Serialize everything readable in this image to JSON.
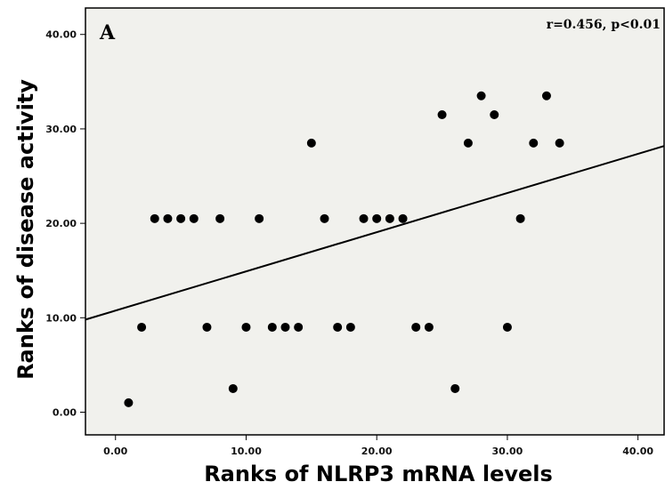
{
  "chart_data": {
    "type": "scatter",
    "panel_label": "A",
    "annotation": "r=0.456, p<0.01",
    "xlabel": "Ranks of NLRP3 mRNA levels",
    "ylabel": "Ranks of disease activity",
    "xlim": [
      -2.3,
      42.0
    ],
    "ylim": [
      -2.4,
      42.8
    ],
    "xticks": [
      0,
      10,
      20,
      30,
      40
    ],
    "xtick_labels": [
      "0.00",
      "10.00",
      "20.00",
      "30.00",
      "40.00"
    ],
    "yticks": [
      0,
      10,
      20,
      30,
      40
    ],
    "ytick_labels": [
      "0.00",
      "10.00",
      "20.00",
      "30.00",
      "40.00"
    ],
    "grid": false,
    "colors": {
      "background": "#f1f1ed",
      "points": "#000000",
      "line": "#000000"
    },
    "regression_line": {
      "intercept": 10.76,
      "slope": 0.415
    },
    "points": [
      {
        "x": 1,
        "y": 1
      },
      {
        "x": 2,
        "y": 9
      },
      {
        "x": 3,
        "y": 20.5
      },
      {
        "x": 4,
        "y": 20.5
      },
      {
        "x": 5,
        "y": 20.5
      },
      {
        "x": 6,
        "y": 20.5
      },
      {
        "x": 7,
        "y": 9
      },
      {
        "x": 8,
        "y": 20.5
      },
      {
        "x": 9,
        "y": 2.5
      },
      {
        "x": 10,
        "y": 9
      },
      {
        "x": 11,
        "y": 20.5
      },
      {
        "x": 12,
        "y": 9
      },
      {
        "x": 13,
        "y": 9
      },
      {
        "x": 14,
        "y": 9
      },
      {
        "x": 15,
        "y": 28.5
      },
      {
        "x": 16,
        "y": 20.5
      },
      {
        "x": 17,
        "y": 9
      },
      {
        "x": 18,
        "y": 9
      },
      {
        "x": 19,
        "y": 20.5
      },
      {
        "x": 20,
        "y": 20.5
      },
      {
        "x": 21,
        "y": 20.5
      },
      {
        "x": 22,
        "y": 20.5
      },
      {
        "x": 23,
        "y": 9
      },
      {
        "x": 24,
        "y": 9
      },
      {
        "x": 25,
        "y": 31.5
      },
      {
        "x": 26,
        "y": 2.5
      },
      {
        "x": 27,
        "y": 28.5
      },
      {
        "x": 28,
        "y": 33.5
      },
      {
        "x": 29,
        "y": 31.5
      },
      {
        "x": 30,
        "y": 9
      },
      {
        "x": 31,
        "y": 20.5
      },
      {
        "x": 32,
        "y": 28.5
      },
      {
        "x": 33,
        "y": 33.5
      },
      {
        "x": 34,
        "y": 28.5
      }
    ]
  }
}
